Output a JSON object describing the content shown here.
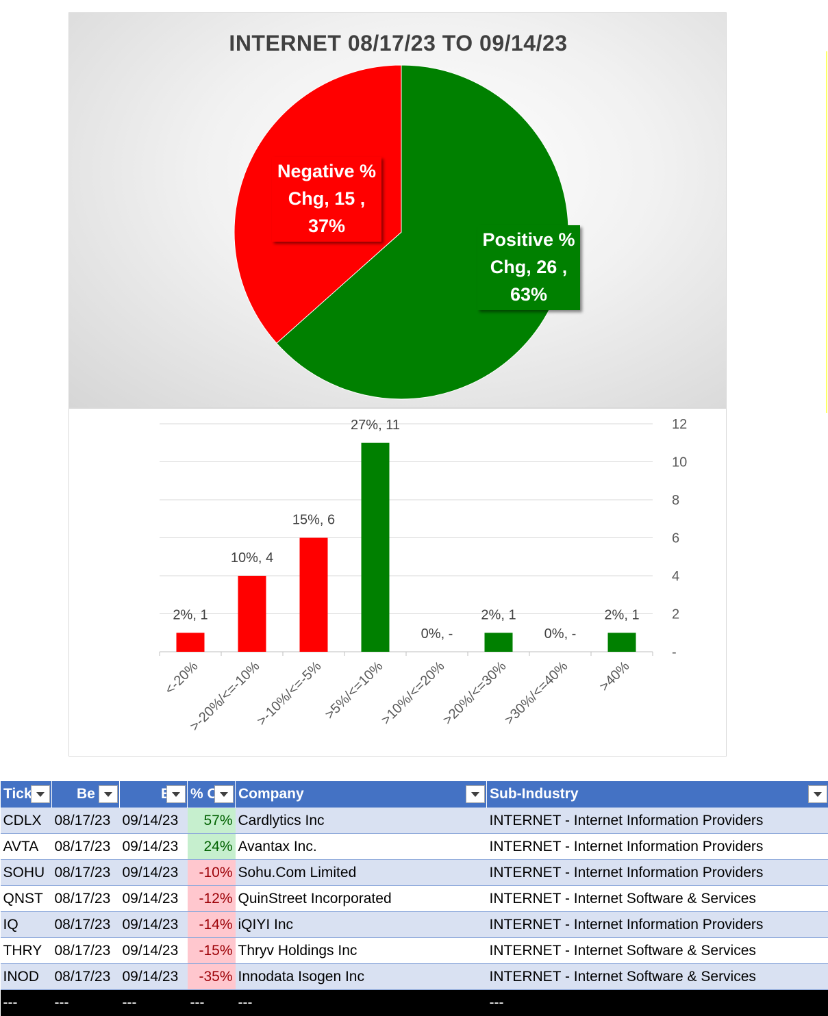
{
  "chart_data": [
    {
      "type": "pie",
      "title": "INTERNET 08/17/23 TO 09/14/23",
      "slices": [
        {
          "label": "Positive % Chg",
          "value": 26,
          "percent": "63%",
          "color": "#008000"
        },
        {
          "label": "Negative % Chg",
          "value": 15,
          "percent": "37%",
          "color": "#ff0000"
        }
      ],
      "data_labels": [
        {
          "lines": [
            "Positive %",
            "Chg,  26 ,",
            "63%"
          ]
        },
        {
          "lines": [
            "Negative %",
            "Chg,  15 ,",
            "37%"
          ]
        }
      ]
    },
    {
      "type": "bar",
      "title": "",
      "categories": [
        "<-20%",
        ">-20%/<=-10%",
        ">-10%/<=-5%",
        ">5%/<=10%",
        ">10%/<=20%",
        ">20%/<=30%",
        ">30%/<=40%",
        ">40%"
      ],
      "values": [
        1,
        4,
        6,
        11,
        0,
        1,
        0,
        1
      ],
      "colors": [
        "#ff0000",
        "#ff0000",
        "#ff0000",
        "#008000",
        "#008000",
        "#008000",
        "#008000",
        "#008000"
      ],
      "data_labels": [
        "2%,  1",
        "10%,  4",
        "15%,  6",
        "27%,  11",
        "0%,  -",
        "2%,  1",
        "0%,  -",
        "2%,  1"
      ],
      "ylim": [
        0,
        12
      ],
      "yticks": [
        "-",
        "2",
        "4",
        "6",
        "8",
        "10",
        "12"
      ],
      "yaxis_position": "right",
      "grid": true
    }
  ],
  "table": {
    "headers": [
      "Tick",
      "Be",
      "E",
      "% C",
      "Company",
      "Sub-Industry"
    ],
    "rows": [
      {
        "ticker": "CDLX",
        "begin": "08/17/23",
        "end": "09/14/23",
        "pct": "57%",
        "sign": "pos",
        "company": "Cardlytics Inc",
        "sub_industry": "INTERNET - Internet Information Providers"
      },
      {
        "ticker": "AVTA",
        "begin": "08/17/23",
        "end": "09/14/23",
        "pct": "24%",
        "sign": "pos",
        "company": "Avantax Inc.",
        "sub_industry": "INTERNET - Internet Information Providers"
      },
      {
        "ticker": "SOHU",
        "begin": "08/17/23",
        "end": "09/14/23",
        "pct": "-10%",
        "sign": "neg",
        "company": "Sohu.Com Limited",
        "sub_industry": "INTERNET - Internet Information Providers"
      },
      {
        "ticker": "QNST",
        "begin": "08/17/23",
        "end": "09/14/23",
        "pct": "-12%",
        "sign": "neg",
        "company": "QuinStreet Incorporated",
        "sub_industry": "INTERNET - Internet Software & Services"
      },
      {
        "ticker": "IQ",
        "begin": "08/17/23",
        "end": "09/14/23",
        "pct": "-14%",
        "sign": "neg",
        "company": "iQIYI Inc",
        "sub_industry": "INTERNET - Internet Information Providers"
      },
      {
        "ticker": "THRY",
        "begin": "08/17/23",
        "end": "09/14/23",
        "pct": "-15%",
        "sign": "neg",
        "company": "Thryv Holdings Inc",
        "sub_industry": "INTERNET - Internet Software & Services"
      },
      {
        "ticker": "INOD",
        "begin": "08/17/23",
        "end": "09/14/23",
        "pct": "-35%",
        "sign": "neg",
        "company": "Innodata Isogen Inc",
        "sub_industry": "INTERNET - Internet Software & Services"
      }
    ],
    "footer": [
      "---",
      "---",
      "---",
      "---",
      "---",
      "---"
    ]
  }
}
